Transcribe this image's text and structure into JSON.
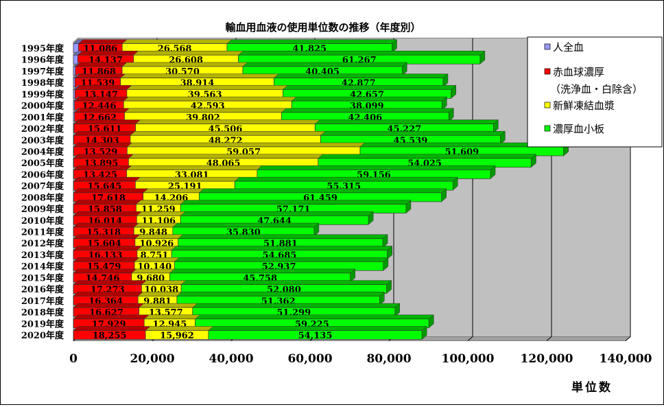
{
  "chart_data": {
    "type": "bar",
    "orientation": "horizontal",
    "stacked": true,
    "title": "輸血用血液の使用単位数の推移（年度別）",
    "xlabel": "単位数",
    "ylabel": "",
    "xlim": [
      0,
      140000
    ],
    "xticks": [
      "0",
      "20,000",
      "40,000",
      "60,000",
      "80,000",
      "100,000",
      "120,000",
      "140,000"
    ],
    "xtick_values": [
      0,
      20000,
      40000,
      60000,
      80000,
      100000,
      120000,
      140000
    ],
    "grid": true,
    "legend_position": "right",
    "categories": [
      "1995年度",
      "1996年度",
      "1997年度",
      "1998年度",
      "1999年度",
      "2000年度",
      "2001年度",
      "2002年度",
      "2003年度",
      "2004年度",
      "2005年度",
      "2006年度",
      "2007年度",
      "2008年度",
      "2009年度",
      "2010年度",
      "2011年度",
      "2012年度",
      "2013年度",
      "2014年度",
      "2015年度",
      "2016年度",
      "2017年度",
      "2018年度",
      "2019年度",
      "2020年度"
    ],
    "series": [
      {
        "name": "人全血",
        "color": "#9999ff",
        "labeled": false,
        "values": [
          1300,
          1100,
          500,
          400,
          400,
          300,
          300,
          150,
          120,
          100,
          90,
          80,
          70,
          60,
          50,
          40,
          30,
          30,
          20,
          20,
          20,
          20,
          20,
          20,
          20,
          20
        ]
      },
      {
        "name": "赤血球濃厚（洗浄血・白除含）",
        "color": "#ff0000",
        "labeled": true,
        "values": [
          11086,
          14137,
          11868,
          11539,
          13147,
          12446,
          12662,
          15611,
          14303,
          13529,
          13895,
          13425,
          15645,
          17618,
          15858,
          16014,
          15318,
          15604,
          16133,
          15479,
          14746,
          17273,
          16364,
          16627,
          17929,
          18255
        ]
      },
      {
        "name": "新鮮凍結血漿",
        "color": "#ffff00",
        "labeled": true,
        "values": [
          26568,
          26608,
          30570,
          38914,
          39563,
          42593,
          39802,
          45506,
          48272,
          59057,
          48065,
          33081,
          25191,
          14206,
          11259,
          11106,
          9848,
          10926,
          8751,
          10140,
          9680,
          10038,
          9881,
          13577,
          12945,
          15962
        ]
      },
      {
        "name": "濃厚血小板",
        "color": "#00ff00",
        "labeled": true,
        "values": [
          41825,
          61267,
          40405,
          42877,
          42657,
          38099,
          42406,
          45227,
          45539,
          51609,
          54025,
          59156,
          55315,
          61459,
          57171,
          47644,
          35830,
          51881,
          54685,
          52937,
          45758,
          52080,
          51362,
          51299,
          59225,
          54135
        ]
      }
    ]
  },
  "colors": {
    "wall": "#c0c0c0",
    "floor": "#a0a0a0",
    "grid": "#000000"
  }
}
